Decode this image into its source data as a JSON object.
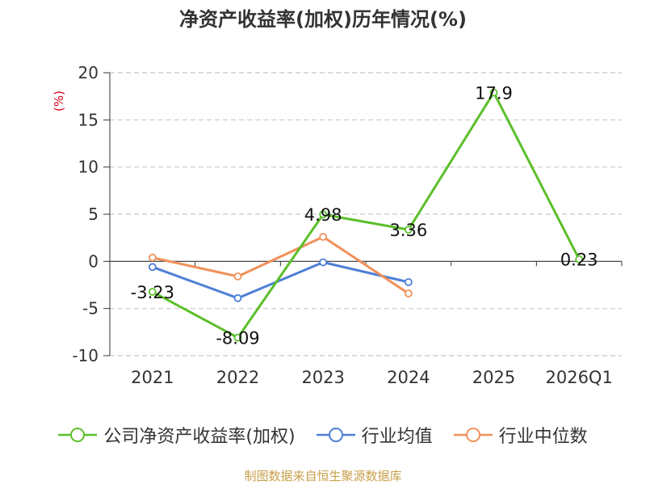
{
  "chart_data": {
    "type": "line",
    "title": "净资产收益率(加权)历年情况(%)",
    "ylabel": "(%)",
    "categories": [
      "2021",
      "2022",
      "2023",
      "2024",
      "2025",
      "2026Q1"
    ],
    "ylim": [
      -10,
      20
    ],
    "yticks": [
      20,
      15,
      10,
      5,
      0,
      -5,
      -10
    ],
    "grid": true,
    "legend_position": "bottom",
    "series": [
      {
        "name": "公司净资产收益率(加权)",
        "color": "#5cbf2a",
        "values": [
          -3.23,
          -8.09,
          4.98,
          3.36,
          17.9,
          0.23
        ],
        "labels": [
          "-3.23",
          "-8.09",
          "4.98",
          "3.36",
          "17.9",
          "0.23"
        ]
      },
      {
        "name": "行业均值",
        "color": "#4e7fd6",
        "values": [
          -0.6,
          -3.9,
          -0.1,
          -2.2,
          null,
          null
        ]
      },
      {
        "name": "行业中位数",
        "color": "#f0915a",
        "values": [
          0.4,
          -1.6,
          2.6,
          -3.4,
          null,
          null
        ]
      }
    ]
  },
  "source": "制图数据来自恒生聚源数据库"
}
